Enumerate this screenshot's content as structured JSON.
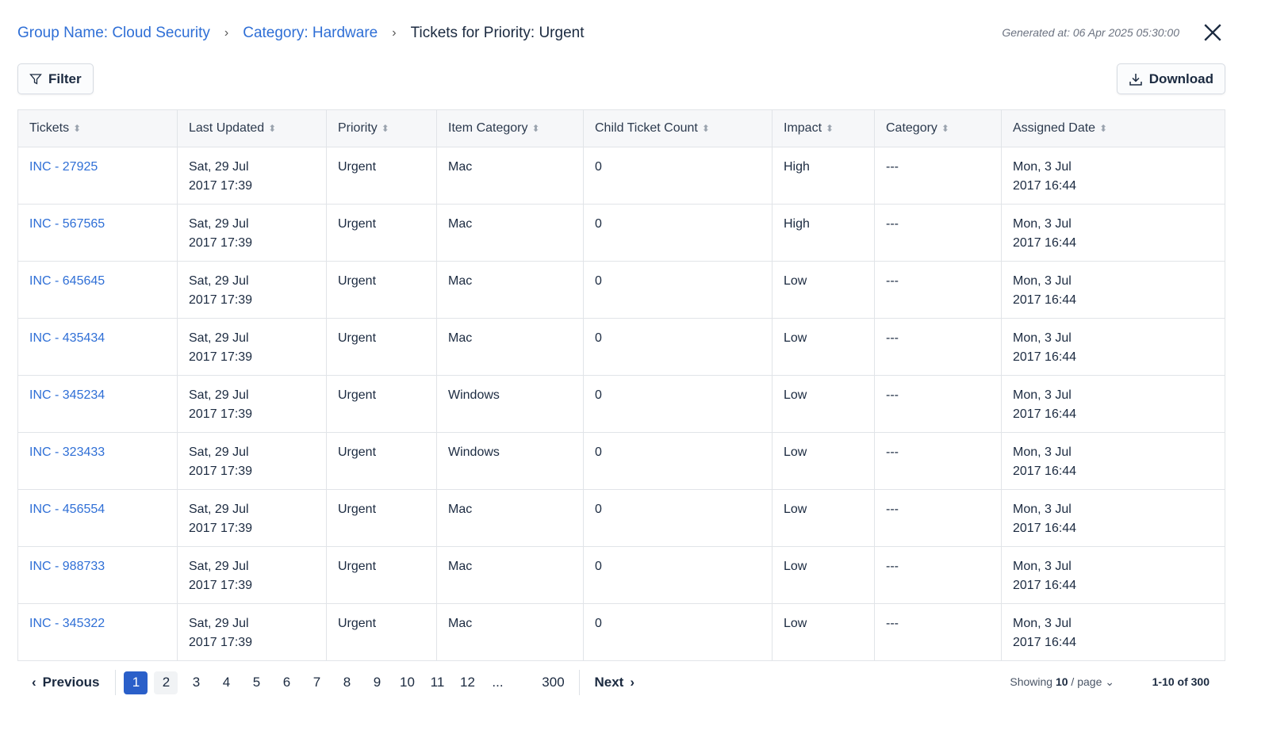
{
  "breadcrumb": {
    "items": [
      "Group Name: Cloud Security",
      "Category: Hardware"
    ],
    "current": "Tickets for Priority: Urgent"
  },
  "generated_at": "Generated at: 06 Apr 2025 05:30:00",
  "toolbar": {
    "filter_label": "Filter",
    "download_label": "Download"
  },
  "table": {
    "columns": [
      "Tickets",
      "Last Updated",
      "Priority",
      "Item Category",
      "Child Ticket Count",
      "Impact",
      "Category",
      "Assigned Date"
    ],
    "rows": [
      [
        "INC - 27925",
        "Sat, 29 Jul\n2017 17:39",
        "Urgent",
        "Mac",
        "0",
        "High",
        "---",
        "Mon, 3 Jul\n2017 16:44"
      ],
      [
        "INC - 567565",
        "Sat, 29 Jul\n2017 17:39",
        "Urgent",
        "Mac",
        "0",
        "High",
        "---",
        "Mon, 3 Jul\n2017 16:44"
      ],
      [
        "INC - 645645",
        "Sat, 29 Jul\n2017 17:39",
        "Urgent",
        "Mac",
        "0",
        "Low",
        "---",
        "Mon, 3 Jul\n2017 16:44"
      ],
      [
        "INC - 435434",
        "Sat, 29 Jul\n2017 17:39",
        "Urgent",
        "Mac",
        "0",
        "Low",
        "---",
        "Mon, 3 Jul\n2017 16:44"
      ],
      [
        "INC - 345234",
        "Sat, 29 Jul\n2017 17:39",
        "Urgent",
        "Windows",
        "0",
        "Low",
        "---",
        "Mon, 3 Jul\n2017 16:44"
      ],
      [
        "INC - 323433",
        "Sat, 29 Jul\n2017 17:39",
        "Urgent",
        "Windows",
        "0",
        "Low",
        "---",
        "Mon, 3 Jul\n2017 16:44"
      ],
      [
        "INC - 456554",
        "Sat, 29 Jul\n2017 17:39",
        "Urgent",
        "Mac",
        "0",
        "Low",
        "---",
        "Mon, 3 Jul\n2017 16:44"
      ],
      [
        "INC - 988733",
        "Sat, 29 Jul\n2017 17:39",
        "Urgent",
        "Mac",
        "0",
        "Low",
        "---",
        "Mon, 3 Jul\n2017 16:44"
      ],
      [
        "INC - 345322",
        "Sat, 29 Jul\n2017 17:39",
        "Urgent",
        "Mac",
        "0",
        "Low",
        "---",
        "Mon, 3 Jul\n2017 16:44"
      ]
    ]
  },
  "pagination": {
    "previous": "Previous",
    "next": "Next",
    "pages": [
      "1",
      "2",
      "3",
      "4",
      "5",
      "6",
      "7",
      "8",
      "9",
      "10",
      "11",
      "12",
      "...",
      "300"
    ],
    "current": "1",
    "showing_prefix": "Showing ",
    "page_size": "10",
    "showing_suffix": " / page",
    "range": "1-10 of 300"
  },
  "colors": {
    "accent": "#2a5fc9",
    "link": "#2f6fd6"
  }
}
